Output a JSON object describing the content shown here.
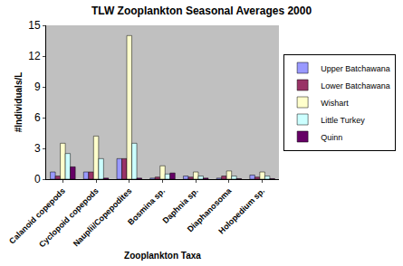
{
  "chart_data": {
    "type": "bar",
    "title": "TLW Zooplankton Seasonal Averages 2000",
    "x_label": "Zooplankton Taxa",
    "y_label": "#Individuals/L",
    "categories": [
      "Calanoid copepods",
      "Cyclopoid copepods",
      "Nauplii/Copepodites",
      "Bosmina sp.",
      "Daphnia sp.",
      "Diaphanosoma",
      "Holopedium sp."
    ],
    "series": [
      {
        "name": "Upper Batchawana",
        "color": "#9999FF",
        "values": [
          0.7,
          0.7,
          2.0,
          0.1,
          0.3,
          0.1,
          0.4
        ]
      },
      {
        "name": "Lower Batchawana",
        "color": "#993366",
        "values": [
          0.3,
          0.7,
          2.0,
          0.2,
          0.2,
          0.3,
          0.2
        ]
      },
      {
        "name": "Wishart",
        "color": "#FFFFCC",
        "values": [
          3.5,
          4.2,
          14.0,
          1.3,
          0.7,
          0.8,
          0.7
        ]
      },
      {
        "name": "Little Turkey",
        "color": "#CCFFFF",
        "values": [
          2.5,
          2.0,
          3.5,
          0.5,
          0.3,
          0.3,
          0.3
        ]
      },
      {
        "name": "Quinn",
        "color": "#660066",
        "values": [
          1.2,
          0.1,
          0.1,
          0.6,
          0.1,
          0.05,
          0.05
        ]
      }
    ],
    "ylim": [
      0,
      15
    ],
    "yticks": [
      0,
      3,
      6,
      9,
      12,
      15
    ],
    "grid": false,
    "legend": "right"
  }
}
